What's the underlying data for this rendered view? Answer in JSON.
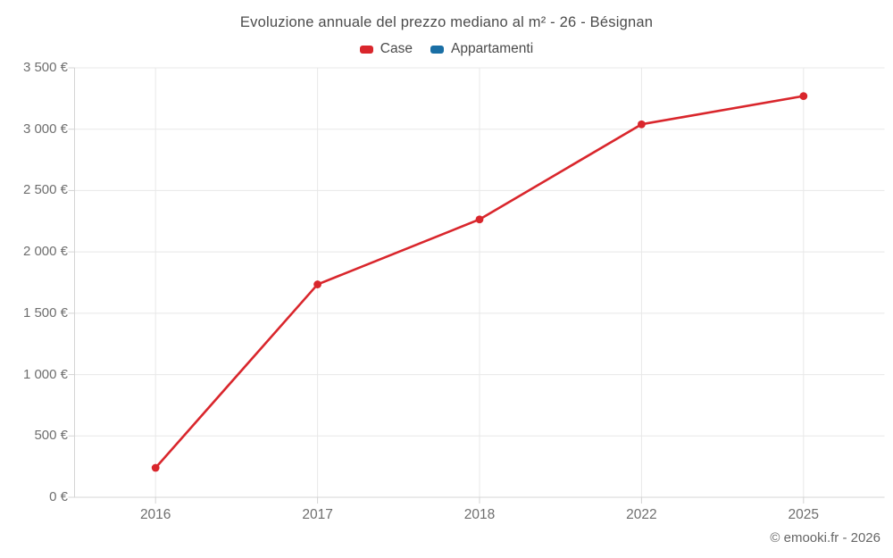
{
  "chart_data": {
    "type": "line",
    "title": "Evoluzione annuale del prezzo mediano al m² - 26 - Bésignan",
    "categories": [
      "2016",
      "2017",
      "2018",
      "2022",
      "2025"
    ],
    "series": [
      {
        "name": "Case",
        "color": "#d9262c",
        "values": [
          240,
          1735,
          2265,
          3040,
          3270
        ]
      },
      {
        "name": "Appartamenti",
        "color": "#1a6fa5",
        "values": []
      }
    ],
    "xlabel": "",
    "ylabel": "",
    "ylim": [
      0,
      3500
    ],
    "ytick_step": 500,
    "ytick_labels": [
      "0 €",
      "500 €",
      "1 000 €",
      "1 500 €",
      "2 000 €",
      "2 500 €",
      "3 000 €",
      "3 500 €"
    ],
    "grid": true,
    "legend_position": "top",
    "credit": "© emooki.fr - 2026"
  },
  "style_colors": {
    "grid": "#e8e8e8",
    "axis": "#d4d4d4",
    "title_text": "#4b4b4b",
    "label_text": "#6e6e6e"
  }
}
